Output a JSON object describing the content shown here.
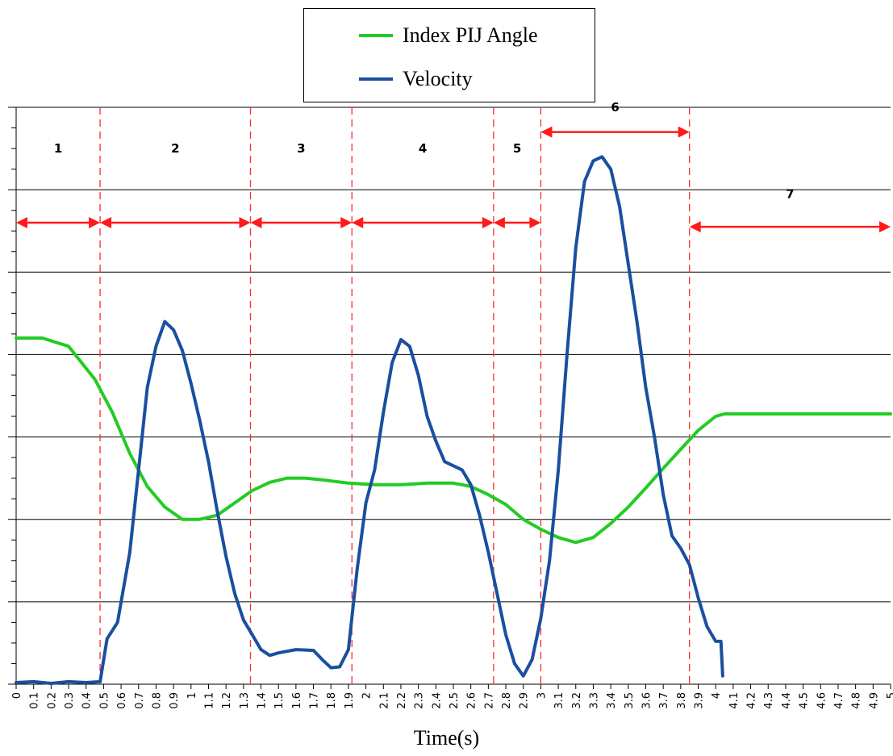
{
  "chart_data": {
    "type": "line",
    "xlabel": "Time(s)",
    "ylabel": "",
    "xlim": [
      0,
      5
    ],
    "ylim": [
      0,
      7
    ],
    "grid": "horizontal",
    "legend_position": "top-center",
    "x_ticks": [
      "0",
      "0.1",
      "0.2",
      "0.3",
      "0.4",
      "0.5",
      "0.6",
      "0.7",
      "0.8",
      "0.9",
      "1",
      "1.1",
      "1.2",
      "1.3",
      "1.4",
      "1.5",
      "1.6",
      "1.7",
      "1.8",
      "1.9",
      "2",
      "2.1",
      "2.2",
      "2.3",
      "2.4",
      "2.5",
      "2.6",
      "2.7",
      "2.8",
      "2.9",
      "3",
      "3.1",
      "3.2",
      "3.3",
      "3.4",
      "3.5",
      "3.6",
      "3.7",
      "3.8",
      "3.9",
      "4",
      "4.1",
      "4.2",
      "4.3",
      "4.4",
      "4.5",
      "4.6",
      "4.7",
      "4.8",
      "4.9",
      "5"
    ],
    "series": [
      {
        "name": "Index PIJ Angle",
        "color": "#22cc22",
        "points": [
          [
            0,
            4.2
          ],
          [
            0.15,
            4.2
          ],
          [
            0.3,
            4.1
          ],
          [
            0.45,
            3.7
          ],
          [
            0.55,
            3.3
          ],
          [
            0.65,
            2.8
          ],
          [
            0.75,
            2.4
          ],
          [
            0.85,
            2.15
          ],
          [
            0.95,
            2.0
          ],
          [
            1.05,
            2.0
          ],
          [
            1.15,
            2.05
          ],
          [
            1.25,
            2.2
          ],
          [
            1.35,
            2.35
          ],
          [
            1.45,
            2.45
          ],
          [
            1.55,
            2.5
          ],
          [
            1.65,
            2.5
          ],
          [
            1.75,
            2.48
          ],
          [
            1.9,
            2.44
          ],
          [
            2.05,
            2.42
          ],
          [
            2.2,
            2.42
          ],
          [
            2.35,
            2.44
          ],
          [
            2.5,
            2.44
          ],
          [
            2.6,
            2.4
          ],
          [
            2.7,
            2.3
          ],
          [
            2.8,
            2.18
          ],
          [
            2.9,
            2.0
          ],
          [
            3.0,
            1.88
          ],
          [
            3.1,
            1.78
          ],
          [
            3.2,
            1.72
          ],
          [
            3.3,
            1.78
          ],
          [
            3.4,
            1.95
          ],
          [
            3.5,
            2.15
          ],
          [
            3.6,
            2.38
          ],
          [
            3.7,
            2.62
          ],
          [
            3.8,
            2.85
          ],
          [
            3.9,
            3.08
          ],
          [
            4.0,
            3.25
          ],
          [
            4.05,
            3.28
          ],
          [
            4.2,
            3.28
          ],
          [
            4.5,
            3.28
          ],
          [
            4.8,
            3.28
          ],
          [
            5.0,
            3.28
          ]
        ]
      },
      {
        "name": "Velocity",
        "color": "#1a4fa0",
        "points": [
          [
            0,
            0.02
          ],
          [
            0.1,
            0.03
          ],
          [
            0.2,
            0.01
          ],
          [
            0.3,
            0.03
          ],
          [
            0.4,
            0.02
          ],
          [
            0.48,
            0.03
          ],
          [
            0.52,
            0.55
          ],
          [
            0.58,
            0.75
          ],
          [
            0.65,
            1.6
          ],
          [
            0.7,
            2.6
          ],
          [
            0.75,
            3.6
          ],
          [
            0.8,
            4.1
          ],
          [
            0.85,
            4.4
          ],
          [
            0.9,
            4.3
          ],
          [
            0.95,
            4.05
          ],
          [
            1.0,
            3.65
          ],
          [
            1.05,
            3.2
          ],
          [
            1.1,
            2.7
          ],
          [
            1.15,
            2.1
          ],
          [
            1.2,
            1.55
          ],
          [
            1.25,
            1.1
          ],
          [
            1.3,
            0.78
          ],
          [
            1.35,
            0.6
          ],
          [
            1.4,
            0.42
          ],
          [
            1.45,
            0.35
          ],
          [
            1.5,
            0.38
          ],
          [
            1.6,
            0.42
          ],
          [
            1.7,
            0.41
          ],
          [
            1.75,
            0.3
          ],
          [
            1.8,
            0.2
          ],
          [
            1.85,
            0.21
          ],
          [
            1.9,
            0.42
          ],
          [
            1.95,
            1.4
          ],
          [
            2.0,
            2.2
          ],
          [
            2.05,
            2.6
          ],
          [
            2.1,
            3.3
          ],
          [
            2.15,
            3.9
          ],
          [
            2.2,
            4.18
          ],
          [
            2.25,
            4.1
          ],
          [
            2.3,
            3.75
          ],
          [
            2.35,
            3.25
          ],
          [
            2.4,
            2.95
          ],
          [
            2.45,
            2.7
          ],
          [
            2.55,
            2.6
          ],
          [
            2.6,
            2.42
          ],
          [
            2.65,
            2.05
          ],
          [
            2.7,
            1.6
          ],
          [
            2.75,
            1.1
          ],
          [
            2.8,
            0.6
          ],
          [
            2.85,
            0.25
          ],
          [
            2.9,
            0.1
          ],
          [
            2.95,
            0.3
          ],
          [
            3.0,
            0.8
          ],
          [
            3.05,
            1.5
          ],
          [
            3.1,
            2.6
          ],
          [
            3.15,
            4.0
          ],
          [
            3.2,
            5.3
          ],
          [
            3.25,
            6.1
          ],
          [
            3.3,
            6.35
          ],
          [
            3.35,
            6.4
          ],
          [
            3.4,
            6.25
          ],
          [
            3.45,
            5.8
          ],
          [
            3.5,
            5.1
          ],
          [
            3.55,
            4.4
          ],
          [
            3.6,
            3.6
          ],
          [
            3.65,
            3.0
          ],
          [
            3.7,
            2.3
          ],
          [
            3.75,
            1.8
          ],
          [
            3.8,
            1.65
          ],
          [
            3.85,
            1.45
          ],
          [
            3.9,
            1.05
          ],
          [
            3.95,
            0.7
          ],
          [
            4.0,
            0.52
          ],
          [
            4.03,
            0.52
          ],
          [
            4.04,
            0.1
          ]
        ]
      }
    ],
    "phase_boundaries": [
      0.48,
      1.34,
      1.92,
      2.73,
      3.0,
      3.85
    ],
    "phases": [
      {
        "label": "1",
        "start": 0.0,
        "end": 0.48,
        "arrow_y": 5.6,
        "label_y": 6.45
      },
      {
        "label": "2",
        "start": 0.48,
        "end": 1.34,
        "arrow_y": 5.6,
        "label_y": 6.45
      },
      {
        "label": "3",
        "start": 1.34,
        "end": 1.92,
        "arrow_y": 5.6,
        "label_y": 6.45
      },
      {
        "label": "4",
        "start": 1.92,
        "end": 2.73,
        "arrow_y": 5.6,
        "label_y": 6.45
      },
      {
        "label": "5",
        "start": 2.73,
        "end": 3.0,
        "arrow_y": 5.6,
        "label_y": 6.45
      },
      {
        "label": "6",
        "start": 3.0,
        "end": 3.85,
        "arrow_y": 6.7,
        "label_y": 6.95
      },
      {
        "label": "7",
        "start": 3.85,
        "end": 5.0,
        "arrow_y": 5.55,
        "label_y": 5.9
      }
    ]
  }
}
